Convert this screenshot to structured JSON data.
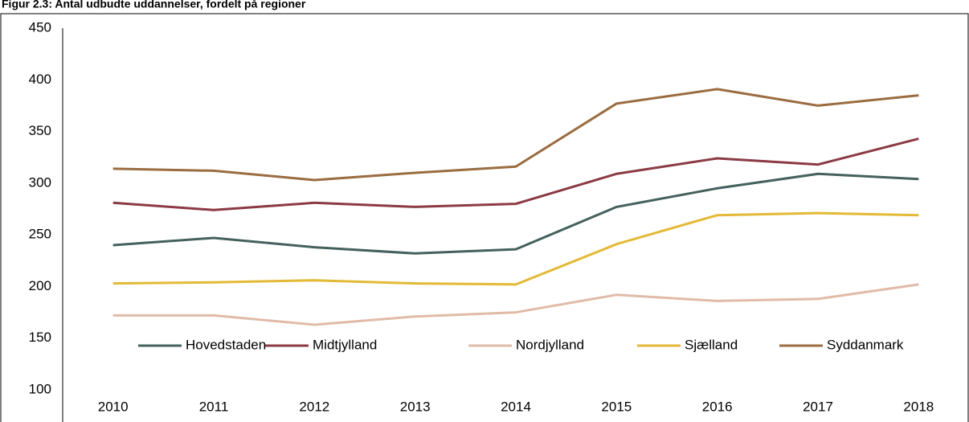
{
  "chart_data": {
    "type": "line",
    "title": "Figur 2.3: Antal udbudte uddannelser, fordelt på regioner",
    "categories": [
      "2010",
      "2011",
      "2012",
      "2013",
      "2014",
      "2015",
      "2016",
      "2017",
      "2018"
    ],
    "series": [
      {
        "name": "Hovedstaden",
        "color": "#44615d",
        "values": [
          240,
          247,
          238,
          232,
          236,
          277,
          295,
          309,
          304
        ]
      },
      {
        "name": "Midtjylland",
        "color": "#8b3a44",
        "values": [
          281,
          274,
          281,
          277,
          280,
          309,
          324,
          318,
          343
        ]
      },
      {
        "name": "Nordjylland",
        "color": "#e0bba8",
        "values": [
          172,
          172,
          163,
          171,
          175,
          192,
          186,
          188,
          202
        ]
      },
      {
        "name": "Sjælland",
        "color": "#e3b935",
        "values": [
          203,
          204,
          206,
          203,
          202,
          241,
          269,
          271,
          269
        ]
      },
      {
        "name": "Syddanmark",
        "color": "#9a6c40",
        "values": [
          314,
          312,
          303,
          310,
          316,
          377,
          391,
          375,
          385
        ]
      }
    ],
    "ylim": [
      100,
      450
    ],
    "yticks": [
      100,
      150,
      200,
      250,
      300,
      350,
      400,
      450
    ],
    "grid": false,
    "legend": "bottom"
  }
}
